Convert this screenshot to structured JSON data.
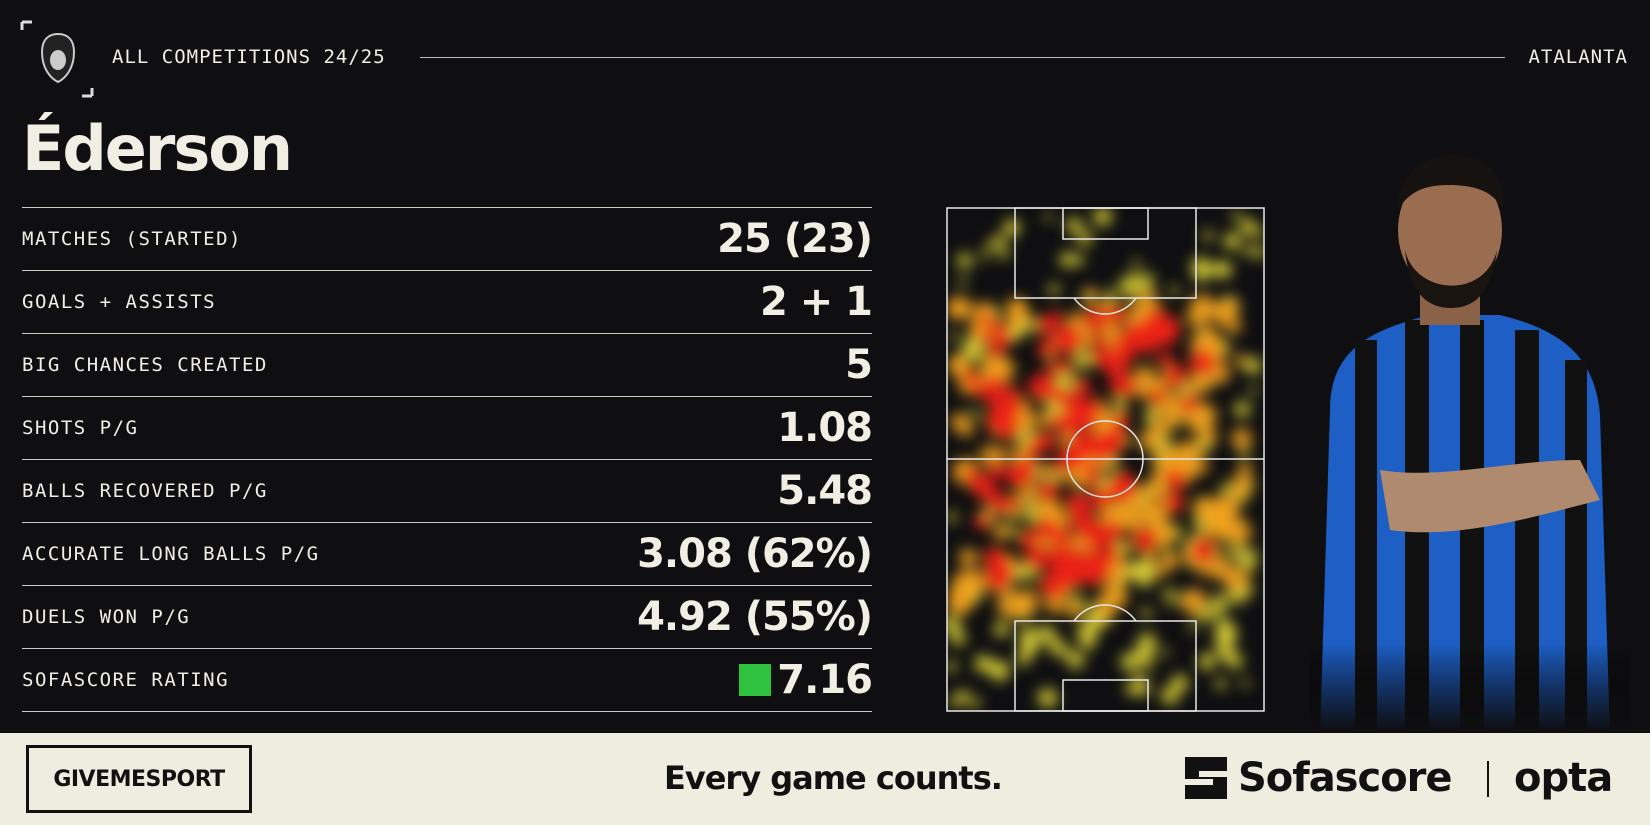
{
  "header": {
    "competition": "ALL COMPETITIONS 24/25",
    "team": "ATALANTA"
  },
  "player": "Éderson",
  "stats": [
    {
      "label": "MATCHES (STARTED)",
      "value": "25 (23)"
    },
    {
      "label": "GOALS + ASSISTS",
      "value": "2 + 1"
    },
    {
      "label": "BIG CHANCES CREATED",
      "value": "5"
    },
    {
      "label": "SHOTS P/G",
      "value": "1.08"
    },
    {
      "label": "BALLS RECOVERED P/G",
      "value": "5.48"
    },
    {
      "label": "ACCURATE LONG BALLS P/G",
      "value": "3.08 (62%)"
    },
    {
      "label": "DUELS WON P/G",
      "value": "4.92 (55%)"
    },
    {
      "label": "SOFASCORE RATING",
      "value": "7.16"
    }
  ],
  "footer": {
    "brand": "GIVEMESPORT",
    "tagline": "Every game counts.",
    "partner": "Sofascore",
    "provider": "opta"
  }
}
